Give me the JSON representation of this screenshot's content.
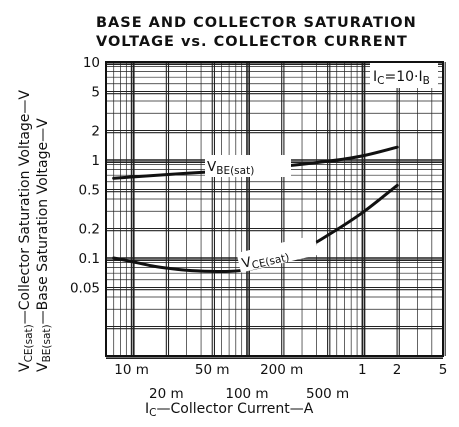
{
  "chart_data": {
    "type": "line",
    "title_line1": "BASE AND COLLECTOR SATURATION",
    "title_line2": "VOLTAGE vs. COLLECTOR CURRENT",
    "condition": {
      "main": "I",
      "sub_c": "C",
      "mid": "=10·I",
      "sub_b": "B"
    },
    "xlabel": {
      "main": "I",
      "sub": "C",
      "rest": "—Collector Current—A"
    },
    "ylabel_line1": {
      "main": "V",
      "sub": "CE(sat)",
      "rest": "—Collector Saturation Voltage—V"
    },
    "ylabel_line2": {
      "main": "V",
      "sub": "BE(sat)",
      "rest": "—Base Saturation Voltage—V"
    },
    "x_scale": "log",
    "y_scale": "log",
    "xlim": [
      0.006,
      5
    ],
    "ylim": [
      0.01,
      10
    ],
    "x_tick_labels_row1": [
      {
        "value": 0.01,
        "label": "10 m"
      },
      {
        "value": 0.05,
        "label": "50 m"
      },
      {
        "value": 0.2,
        "label": "200 m"
      },
      {
        "value": 1,
        "label": "1"
      },
      {
        "value": 2,
        "label": "2"
      },
      {
        "value": 5,
        "label": "5"
      }
    ],
    "x_tick_labels_row2": [
      {
        "value": 0.02,
        "label": "20 m"
      },
      {
        "value": 0.1,
        "label": "100 m"
      },
      {
        "value": 0.5,
        "label": "500 m"
      }
    ],
    "y_tick_labels": [
      {
        "value": 10,
        "label": "10"
      },
      {
        "value": 5,
        "label": "5"
      },
      {
        "value": 2,
        "label": "2"
      },
      {
        "value": 1,
        "label": "1"
      },
      {
        "value": 0.5,
        "label": "0.5"
      },
      {
        "value": 0.2,
        "label": "0.2"
      },
      {
        "value": 0.1,
        "label": "0.1"
      },
      {
        "value": 0.05,
        "label": "0.05"
      }
    ],
    "grid": true,
    "series": [
      {
        "name": {
          "main": "V",
          "sub": "BE(sat)"
        },
        "x": [
          0.007,
          0.01,
          0.02,
          0.05,
          0.1,
          0.2,
          0.5,
          1,
          2
        ],
        "y": [
          0.65,
          0.67,
          0.71,
          0.76,
          0.8,
          0.86,
          0.97,
          1.1,
          1.35
        ]
      },
      {
        "name": {
          "main": "V",
          "sub": "CE(sat)"
        },
        "x": [
          0.007,
          0.01,
          0.015,
          0.02,
          0.03,
          0.05,
          0.07,
          0.1,
          0.15,
          0.2,
          0.3,
          0.5,
          1,
          2
        ],
        "y": [
          0.1,
          0.092,
          0.083,
          0.079,
          0.075,
          0.073,
          0.073,
          0.076,
          0.085,
          0.097,
          0.12,
          0.17,
          0.29,
          0.55
        ]
      }
    ]
  }
}
